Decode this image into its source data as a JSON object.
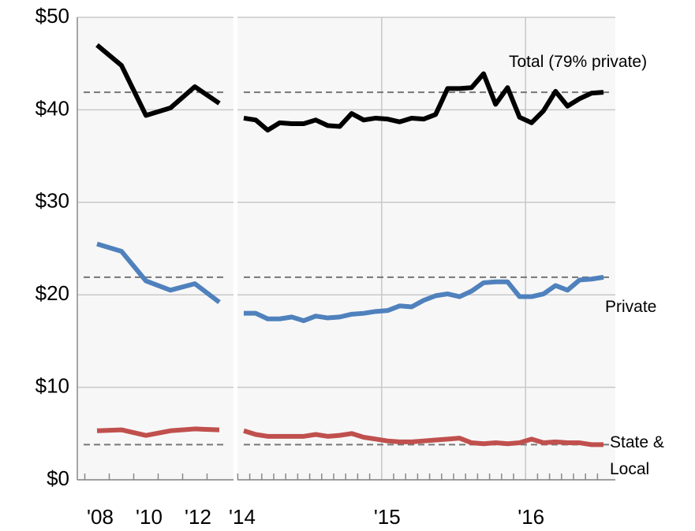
{
  "chart_data": [
    {
      "type": "line",
      "categories": [
        "'08",
        null,
        "'10",
        null,
        "'12",
        null
      ],
      "series": [
        {
          "color": "#000000",
          "values": [
            47.0,
            44.8,
            39.4,
            40.2,
            42.5,
            40.7
          ]
        },
        {
          "color": "#4f81bd",
          "values": [
            25.5,
            24.7,
            21.5,
            20.5,
            21.2,
            19.2
          ]
        },
        {
          "color": "#c0504d",
          "values": [
            5.3,
            5.4,
            4.8,
            5.3,
            5.5,
            5.4
          ]
        }
      ],
      "reference_lines": [
        41.9,
        21.9,
        3.8
      ],
      "ylim": [
        0,
        50
      ],
      "yticks": [
        {
          "value": 0,
          "label": "$0"
        },
        {
          "value": 10,
          "label": "$10"
        },
        {
          "value": 20,
          "label": "$20"
        },
        {
          "value": 30,
          "label": "$30"
        },
        {
          "value": 40,
          "label": "$40"
        },
        {
          "value": 50,
          "label": "$50"
        }
      ],
      "grid": true
    },
    {
      "type": "line",
      "categories": [
        "'14",
        null,
        null,
        null,
        null,
        null,
        null,
        null,
        null,
        null,
        null,
        null,
        "'15",
        null,
        null,
        null,
        null,
        null,
        null,
        null,
        null,
        null,
        null,
        null,
        "'16",
        null,
        null,
        null,
        null,
        null,
        null
      ],
      "series": [
        {
          "name": "Total (79% private)",
          "color": "#000000",
          "values": [
            39.1,
            38.9,
            37.8,
            38.6,
            38.5,
            38.5,
            38.9,
            38.3,
            38.2,
            39.6,
            38.9,
            39.1,
            39.0,
            38.7,
            39.1,
            39.0,
            39.5,
            42.3,
            42.3,
            42.4,
            43.9,
            40.6,
            42.4,
            39.2,
            38.6,
            39.9,
            42.0,
            40.4,
            41.2,
            41.8,
            41.9
          ]
        },
        {
          "name": "Private",
          "color": "#4f81bd",
          "values": [
            18.0,
            18.0,
            17.4,
            17.4,
            17.6,
            17.2,
            17.7,
            17.5,
            17.6,
            17.9,
            18.0,
            18.2,
            18.3,
            18.8,
            18.7,
            19.4,
            19.9,
            20.1,
            19.8,
            20.4,
            21.3,
            21.4,
            21.4,
            19.8,
            19.8,
            20.1,
            21.0,
            20.5,
            21.6,
            21.7,
            21.9
          ]
        },
        {
          "name": "State & Local",
          "color": "#c0504d",
          "values": [
            5.3,
            4.9,
            4.7,
            4.7,
            4.7,
            4.7,
            4.9,
            4.7,
            4.8,
            5.0,
            4.6,
            4.4,
            4.2,
            4.1,
            4.1,
            4.2,
            4.3,
            4.4,
            4.5,
            4.0,
            3.9,
            4.0,
            3.9,
            4.0,
            4.4,
            4.0,
            4.1,
            4.0,
            4.0,
            3.8,
            3.8
          ]
        }
      ],
      "reference_lines": [
        41.9,
        21.9,
        3.8
      ],
      "ylim": [
        0,
        50
      ],
      "yticks": [
        0,
        10,
        20,
        30,
        40,
        50
      ],
      "grid": true
    }
  ]
}
